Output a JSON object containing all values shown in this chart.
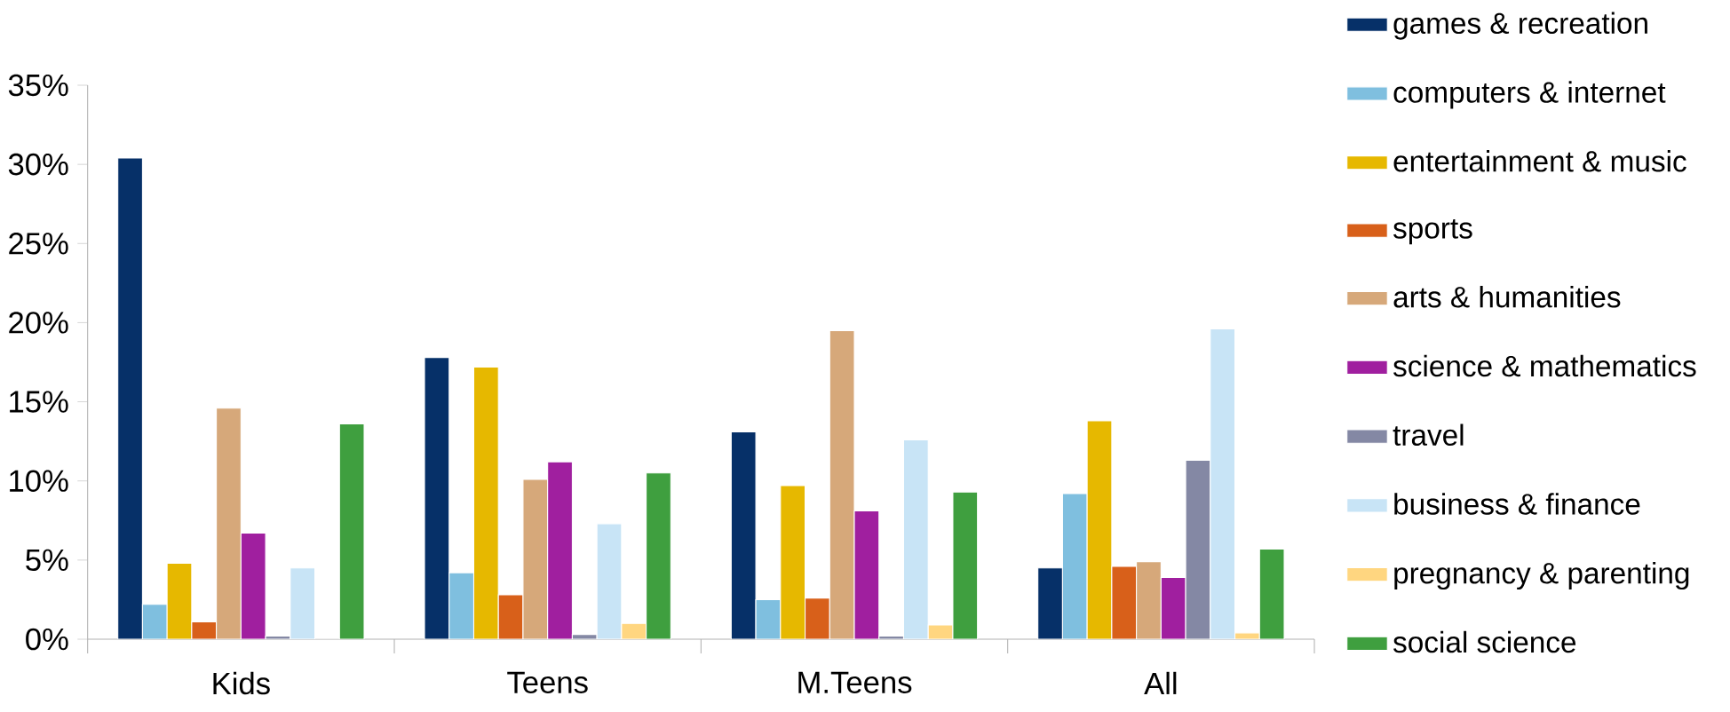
{
  "chart_data": {
    "type": "bar",
    "categories": [
      "Kids",
      "Teens",
      "M.Teens",
      "All"
    ],
    "series": [
      {
        "name": "games & recreation",
        "color": "#063068",
        "values": [
          30.4,
          17.8,
          13.1,
          4.5
        ]
      },
      {
        "name": "computers & internet",
        "color": "#7fbfdf",
        "values": [
          2.2,
          4.2,
          2.5,
          9.2
        ]
      },
      {
        "name": "entertainment & music",
        "color": "#e6b800",
        "values": [
          4.8,
          17.2,
          9.7,
          13.8
        ]
      },
      {
        "name": "sports",
        "color": "#d8601a",
        "values": [
          1.1,
          2.8,
          2.6,
          4.6
        ]
      },
      {
        "name": "arts & humanities",
        "color": "#d6a87a",
        "values": [
          14.6,
          10.1,
          19.5,
          4.9
        ]
      },
      {
        "name": "science & mathematics",
        "color": "#a01f9f",
        "values": [
          6.7,
          11.2,
          8.1,
          3.9
        ]
      },
      {
        "name": "travel",
        "color": "#8488a4",
        "values": [
          0.2,
          0.3,
          0.2,
          11.3
        ]
      },
      {
        "name": "business & finance",
        "color": "#c8e4f6",
        "values": [
          4.5,
          7.3,
          12.6,
          19.6
        ]
      },
      {
        "name": "pregnancy & parenting",
        "color": "#ffd680",
        "values": [
          0,
          1.0,
          0.9,
          0.4
        ]
      },
      {
        "name": "social science",
        "color": "#3f9f3f",
        "values": [
          13.6,
          10.5,
          9.3,
          5.7
        ]
      }
    ],
    "ylim": [
      0,
      35
    ],
    "yticks": [
      {
        "value": 0,
        "label": "0%"
      },
      {
        "value": 5,
        "label": "5%"
      },
      {
        "value": 10,
        "label": "10%"
      },
      {
        "value": 15,
        "label": "15%"
      },
      {
        "value": 20,
        "label": "20%"
      },
      {
        "value": 25,
        "label": "25%"
      },
      {
        "value": 30,
        "label": "30%"
      },
      {
        "value": 35,
        "label": "35%"
      }
    ],
    "grid": false,
    "legend": "right"
  }
}
